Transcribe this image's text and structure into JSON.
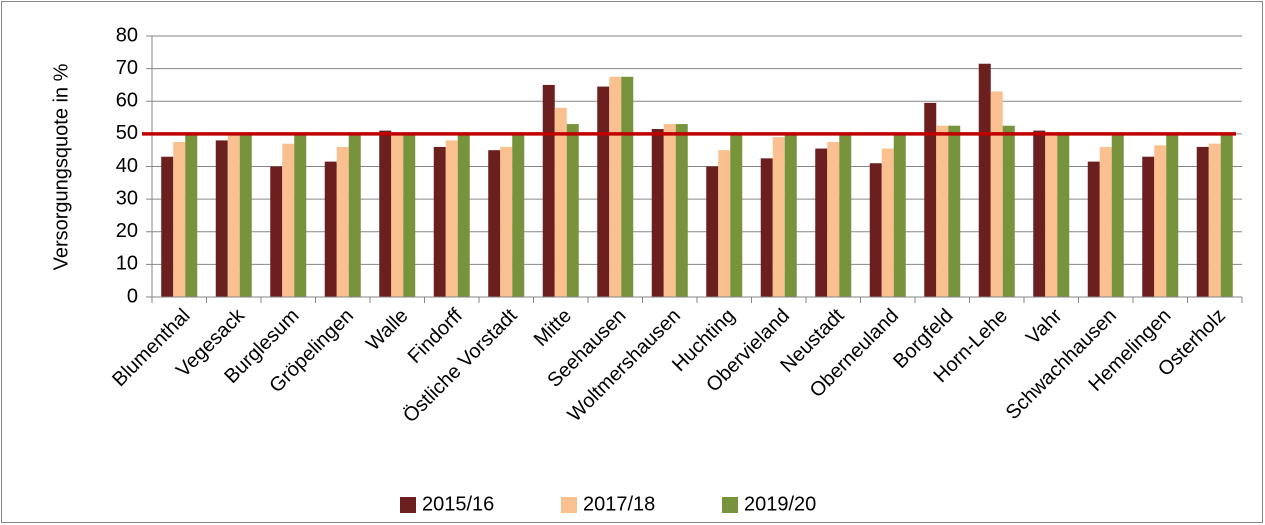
{
  "chart_data": {
    "type": "bar",
    "y_label": "Versorgungsquote in %",
    "categories": [
      "Blumenthal",
      "Vegesack",
      "Burglesum",
      "Gröpelingen",
      "Walle",
      "Findorff",
      "Östliche Vorstadt",
      "Mitte",
      "Seehausen",
      "Woltmershausen",
      "Huchting",
      "Obervieland",
      "Neustadt",
      "Oberneuland",
      "Borgfeld",
      "Horn-Lehe",
      "Vahr",
      "Schwachhausen",
      "Hemelingen",
      "Osterholz"
    ],
    "series": [
      {
        "name": "2015/16",
        "color": "#6b1f1f",
        "values": [
          43,
          48,
          40,
          41.5,
          51,
          46,
          45,
          65,
          64.5,
          51.5,
          40,
          42.5,
          45.5,
          41,
          59.5,
          71.5,
          51,
          41.5,
          43,
          46
        ]
      },
      {
        "name": "2017/18",
        "color": "#fac090",
        "values": [
          47.5,
          50,
          47,
          46,
          50,
          48,
          46,
          58,
          67.5,
          53,
          45,
          49,
          47.5,
          45.5,
          52.5,
          63,
          50.5,
          46,
          46.5,
          47
        ]
      },
      {
        "name": "2019/20",
        "color": "#77933c",
        "values": [
          50,
          50,
          50,
          50,
          50,
          50,
          50,
          53,
          67.5,
          53,
          50,
          50,
          50,
          50,
          52.5,
          52.5,
          50.5,
          50,
          50,
          50
        ]
      }
    ],
    "reference_line": 50,
    "reference_color": "#c00000",
    "ylim": [
      0,
      80
    ],
    "yticks": [
      0,
      10,
      20,
      30,
      40,
      50,
      60,
      70,
      80
    ],
    "grid": true,
    "legend": "bottom"
  }
}
